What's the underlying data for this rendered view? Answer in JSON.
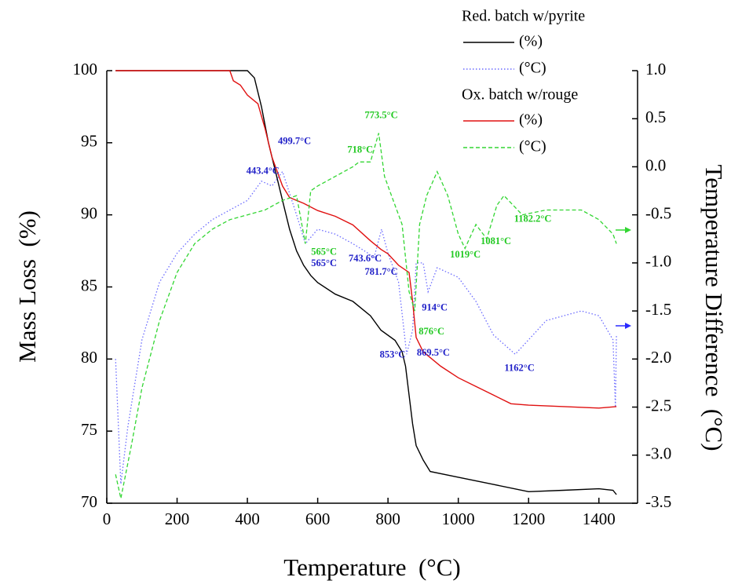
{
  "chart_data": {
    "type": "line",
    "x_label": "Temperature  (°C)",
    "y_label": "Mass Loss  (%)",
    "y2_label": "Temperature Difference  (°C)",
    "xlim": [
      0,
      1510
    ],
    "xticks": [
      0,
      200,
      400,
      600,
      800,
      1000,
      1200,
      1400
    ],
    "ylim": [
      70,
      100
    ],
    "yticks": [
      70,
      75,
      80,
      85,
      90,
      95,
      100
    ],
    "y2lim": [
      -3.5,
      1.0
    ],
    "y2ticks": [
      -3.5,
      {
        "value": -3.0,
        "label": "-3.0"
      },
      -2.5,
      {
        "value": -2.0,
        "label": "-2.0"
      },
      -1.5,
      {
        "value": -1.0,
        "label": "-1.0"
      },
      -0.5,
      {
        "value": 0.0,
        "label": "0.0"
      },
      0.5,
      {
        "value": 1.0,
        "label": "1.0"
      }
    ],
    "groups": [
      {
        "title": "Red. batch w/pyrite",
        "series": [
          {
            "name": "(%)",
            "color": "#000000",
            "dash": "solid",
            "x": [
              25,
              400,
              420,
              440,
              460,
              480,
              500,
              520,
              540,
              560,
              580,
              600,
              650,
              700,
              750,
              780,
              820,
              840,
              850,
              860,
              870,
              880,
              900,
              920,
              1000,
              1100,
              1200,
              1300,
              1400,
              1440,
              1450
            ],
            "values": [
              100,
              100,
              99.5,
              97.5,
              95,
              93,
              91,
              89,
              87.5,
              86.5,
              85.8,
              85.3,
              84.5,
              84,
              83,
              82,
              81.3,
              80.5,
              79.5,
              77.5,
              75.5,
              74,
              73,
              72.2,
              71.8,
              71.3,
              70.8,
              70.9,
              71,
              70.9,
              70.6
            ]
          },
          {
            "name": "(°C)",
            "color": "#6a6aff",
            "dash": "dotted",
            "axis": "y2",
            "x": [
              25,
              40,
              60,
              100,
              150,
              200,
              250,
              300,
              350,
              400,
              440,
              470,
              500,
              540,
              565,
              600,
              650,
              700,
              743.6,
              760,
              781.7,
              800,
              830,
              853,
              870,
              880,
              900,
              914,
              940,
              1000,
              1050,
              1100,
              1162,
              1200,
              1250,
              1300,
              1350,
              1400,
              1440,
              1447,
              1450
            ],
            "values": [
              -2.0,
              -3.3,
              -2.7,
              -1.8,
              -1.2,
              -0.9,
              -0.7,
              -0.55,
              -0.45,
              -0.35,
              -0.15,
              -0.2,
              -0.05,
              -0.5,
              -0.8,
              -0.65,
              -0.7,
              -0.8,
              -0.9,
              -0.95,
              -0.65,
              -0.9,
              -1.2,
              -1.95,
              -1.7,
              -1.0,
              -1.0,
              -1.3,
              -1.05,
              -1.15,
              -1.4,
              -1.75,
              -1.95,
              -1.8,
              -1.6,
              -1.55,
              -1.5,
              -1.55,
              -1.8,
              -2.5,
              -1.75
            ]
          }
        ]
      },
      {
        "title": "Ox. batch w/rouge",
        "series": [
          {
            "name": "(%)",
            "color": "#e01010",
            "dash": "solid",
            "x": [
              25,
              350,
              360,
              380,
              400,
              430,
              450,
              470,
              500,
              520,
              560,
              600,
              650,
              700,
              750,
              780,
              800,
              830,
              860,
              870,
              880,
              900,
              950,
              1000,
              1050,
              1100,
              1150,
              1200,
              1300,
              1400,
              1450
            ],
            "values": [
              100,
              100,
              99.3,
              99,
              98.3,
              97.7,
              96,
              94,
              92,
              91.2,
              90.8,
              90.3,
              89.9,
              89.3,
              88.2,
              87.6,
              87.3,
              86.5,
              86,
              84,
              81.5,
              80.5,
              79.5,
              78.7,
              78.1,
              77.5,
              76.9,
              76.8,
              76.7,
              76.6,
              76.7
            ]
          },
          {
            "name": "(°C)",
            "color": "#33d633",
            "dash": "dashed",
            "axis": "y2",
            "x": [
              25,
              40,
              70,
              100,
              150,
              200,
              250,
              300,
              350,
              400,
              450,
              500,
              540,
              565,
              580,
              600,
              650,
              700,
              718,
              750,
              773.5,
              790,
              810,
              840,
              860,
              876,
              890,
              910,
              940,
              970,
              1000,
              1019,
              1050,
              1081,
              1110,
              1130,
              1182.2,
              1250,
              1350,
              1400,
              1440,
              1450
            ],
            "values": [
              -3.2,
              -3.45,
              -2.9,
              -2.3,
              -1.6,
              -1.1,
              -0.8,
              -0.65,
              -0.55,
              -0.5,
              -0.45,
              -0.35,
              -0.3,
              -0.8,
              -0.25,
              -0.2,
              -0.1,
              0.0,
              0.05,
              0.05,
              0.35,
              -0.1,
              -0.3,
              -0.6,
              -1.3,
              -1.5,
              -0.6,
              -0.3,
              -0.05,
              -0.3,
              -0.7,
              -0.85,
              -0.6,
              -0.75,
              -0.4,
              -0.3,
              -0.5,
              -0.45,
              -0.45,
              -0.55,
              -0.7,
              -0.8
            ]
          }
        ]
      }
    ],
    "annotations": [
      {
        "text": "773.5°C",
        "color": "#22c922",
        "x": 781,
        "y2": 0.53
      },
      {
        "text": "718°C",
        "color": "#22c922",
        "x": 721,
        "y2": 0.17
      },
      {
        "text": "565°C",
        "color": "#22c922",
        "x": 618,
        "y2": -0.89
      },
      {
        "text": "876°C",
        "color": "#22c922",
        "x": 924,
        "y2": -1.72
      },
      {
        "text": "1019°C",
        "color": "#22c922",
        "x": 1020,
        "y2": -0.92
      },
      {
        "text": "1081°C",
        "color": "#22c922",
        "x": 1107,
        "y2": -0.78
      },
      {
        "text": "1182.2°C",
        "color": "#22c922",
        "x": 1212,
        "y2": -0.55
      },
      {
        "text": "499.7°C",
        "color": "#2020c8",
        "x": 534,
        "y2": 0.26
      },
      {
        "text": "443.4°C",
        "color": "#2020c8",
        "x": 444,
        "y2": -0.05
      },
      {
        "text": "565°C",
        "color": "#2020c8",
        "x": 618,
        "y2": -1.01
      },
      {
        "text": "743.6°C",
        "color": "#2020c8",
        "x": 735,
        "y2": -0.96
      },
      {
        "text": "781.7°C",
        "color": "#2020c8",
        "x": 781,
        "y2": -1.1
      },
      {
        "text": "914°C",
        "color": "#2020c8",
        "x": 933,
        "y2": -1.47
      },
      {
        "text": "853°C",
        "color": "#2020c8",
        "x": 813,
        "y2": -1.96
      },
      {
        "text": "869.5°C",
        "color": "#2020c8",
        "x": 929,
        "y2": -1.94
      },
      {
        "text": "1162°C",
        "color": "#2020c8",
        "x": 1174,
        "y2": -2.1
      }
    ]
  }
}
